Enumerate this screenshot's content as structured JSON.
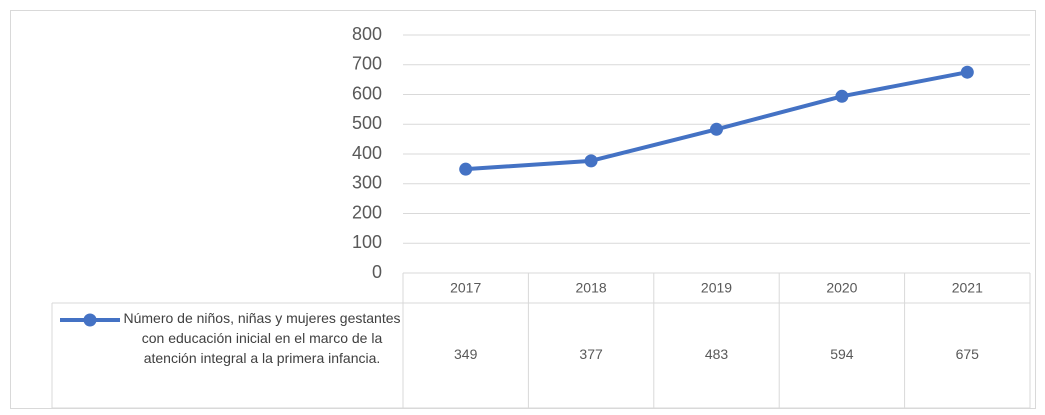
{
  "chart_data": {
    "type": "line",
    "categories": [
      "2017",
      "2018",
      "2019",
      "2020",
      "2021"
    ],
    "series": [
      {
        "name": "Número de niños, niñas y mujeres gestantes con educación inicial en el marco de la atención integral a la primera infancia.",
        "color": "#4472c4",
        "values": [
          349,
          377,
          483,
          594,
          675
        ]
      }
    ],
    "ylim": [
      0,
      800
    ],
    "yticks": [
      0,
      100,
      200,
      300,
      400,
      500,
      600,
      700,
      800
    ],
    "grid": true,
    "data_table": true
  }
}
